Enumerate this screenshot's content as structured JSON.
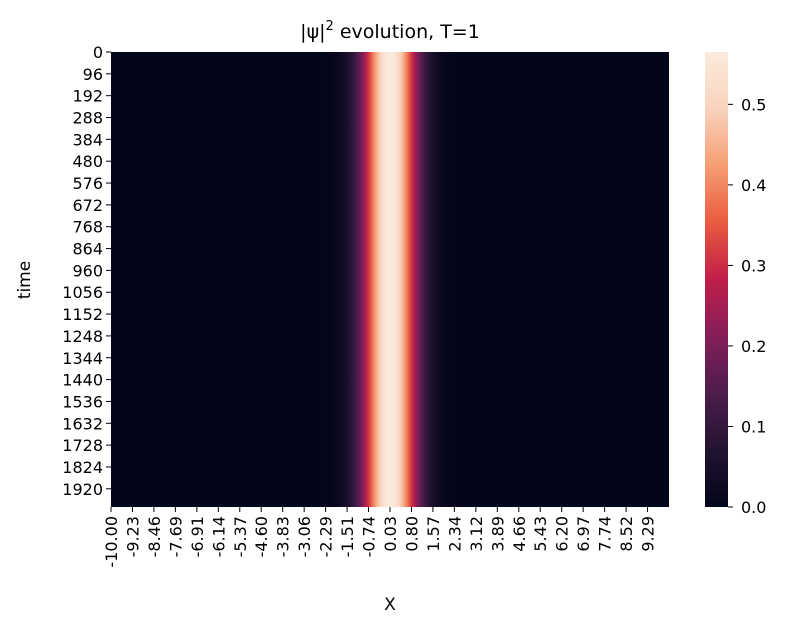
{
  "chart_data": {
    "type": "heatmap",
    "title_prefix": "|ψ|",
    "title_sup": "2",
    "title_suffix": " evolution, T=1",
    "xlabel": "X",
    "ylabel": "time",
    "x_ticks": [
      "-10.00",
      "-9.23",
      "-8.46",
      "-7.69",
      "-6.91",
      "-6.14",
      "-5.37",
      "-4.60",
      "-3.83",
      "-3.06",
      "-2.29",
      "-1.51",
      "-0.74",
      "0.03",
      "0.80",
      "1.57",
      "2.34",
      "3.12",
      "3.89",
      "4.66",
      "5.43",
      "6.20",
      "6.97",
      "7.74",
      "8.52",
      "9.29"
    ],
    "x_range": [
      -10.0,
      10.0
    ],
    "y_ticks": [
      "0",
      "96",
      "192",
      "288",
      "384",
      "480",
      "576",
      "672",
      "768",
      "864",
      "960",
      "1056",
      "1152",
      "1248",
      "1344",
      "1440",
      "1536",
      "1632",
      "1728",
      "1824",
      "1920"
    ],
    "y_range": [
      0,
      2000
    ],
    "colorbar": {
      "ticks": [
        "0.0",
        "0.1",
        "0.2",
        "0.3",
        "0.4",
        "0.5"
      ],
      "range": [
        0.0,
        0.565
      ],
      "colormap": [
        "#03051a",
        "#221331",
        "#4c1d4b",
        "#841e5a",
        "#c01e4a",
        "#ea5a3f",
        "#f59e72",
        "#f9d3bd",
        "#faebdd"
      ]
    },
    "profile": {
      "description": "gaussian peak, constant over time",
      "center": 0.0,
      "peak": 0.565,
      "sigma": 0.7
    }
  }
}
